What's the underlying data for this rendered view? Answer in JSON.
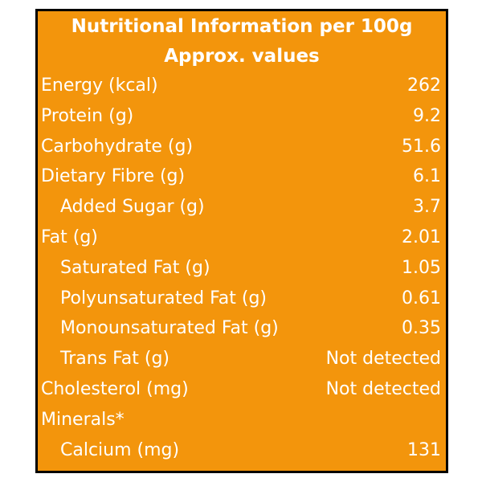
{
  "header": {
    "title": "Nutritional Information per 100g",
    "subtitle": "Approx. values"
  },
  "table": {
    "rows": [
      {
        "label": "Energy (kcal)",
        "value": "262",
        "indent": false
      },
      {
        "label": "Protein (g)",
        "value": "9.2",
        "indent": false
      },
      {
        "label": "Carbohydrate (g)",
        "value": "51.6",
        "indent": false
      },
      {
        "label": "Dietary Fibre (g)",
        "value": "6.1",
        "indent": false
      },
      {
        "label": "Added Sugar (g)",
        "value": "3.7",
        "indent": true
      },
      {
        "label": "Fat (g)",
        "value": "2.01",
        "indent": false
      },
      {
        "label": "Saturated Fat (g)",
        "value": "1.05",
        "indent": true
      },
      {
        "label": "Polyunsaturated Fat (g)",
        "value": "0.61",
        "indent": true
      },
      {
        "label": "Monounsaturated Fat (g)",
        "value": "0.35",
        "indent": true
      },
      {
        "label": "Trans Fat (g)",
        "value": "Not detected",
        "indent": true
      },
      {
        "label": "Cholesterol (mg)",
        "value": "Not detected",
        "indent": false
      },
      {
        "label": "Minerals*",
        "indent": false
      },
      {
        "label": "Calcium (mg)",
        "value": "131",
        "indent": true
      }
    ]
  }
}
